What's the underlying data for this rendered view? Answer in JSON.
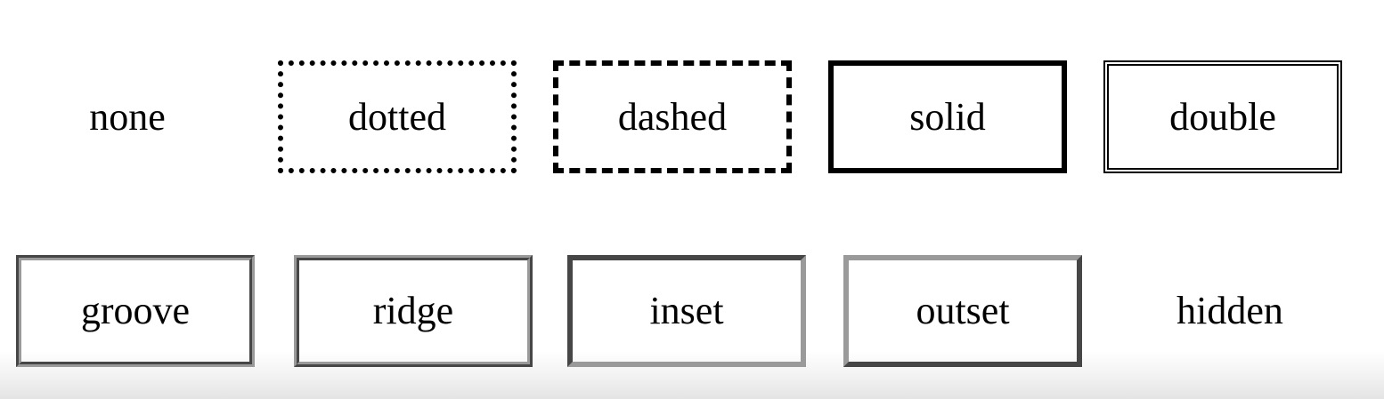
{
  "border_styles": {
    "row1": [
      "none",
      "dotted",
      "dashed",
      "solid",
      "double"
    ],
    "row2": [
      "groove",
      "ridge",
      "inset",
      "outset",
      "hidden"
    ]
  },
  "colors": {
    "text": "#000000",
    "border_black": "#000000",
    "border_gray": "#9a9a9a",
    "background": "#ffffff"
  }
}
